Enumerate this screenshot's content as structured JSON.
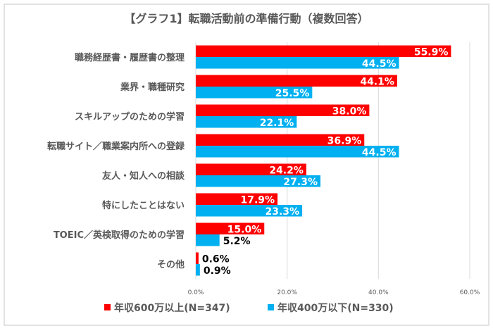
{
  "chart_data": {
    "type": "bar",
    "orientation": "horizontal",
    "title": "【グラフ1】転職活動前の準備行動（複数回答）",
    "categories": [
      "職務経歴書・履歴書の整理",
      "業界・職種研究",
      "スキルアップのための学習",
      "転職サイト／職業案内所への登録",
      "友人・知人への相談",
      "特にしたことはない",
      "TOEIC／英検取得のための学習",
      "その他"
    ],
    "series": [
      {
        "name": "年収600万以上(N=347)",
        "color": "#FF0000",
        "values": [
          55.9,
          44.1,
          38.0,
          36.9,
          24.2,
          17.9,
          15.0,
          0.6
        ]
      },
      {
        "name": "年収400万以下(N=330)",
        "color": "#00B0F0",
        "values": [
          44.5,
          25.5,
          22.1,
          44.5,
          27.3,
          23.3,
          5.2,
          0.9
        ]
      }
    ],
    "xlim": [
      0,
      60
    ],
    "xticks": [
      "0.0%",
      "20.0%",
      "40.0%",
      "60.0%"
    ],
    "xtick_values": [
      0,
      20,
      40,
      60
    ],
    "unit": "%",
    "grid": "vertical",
    "legend": "bottom",
    "xlabel": "",
    "ylabel": ""
  }
}
